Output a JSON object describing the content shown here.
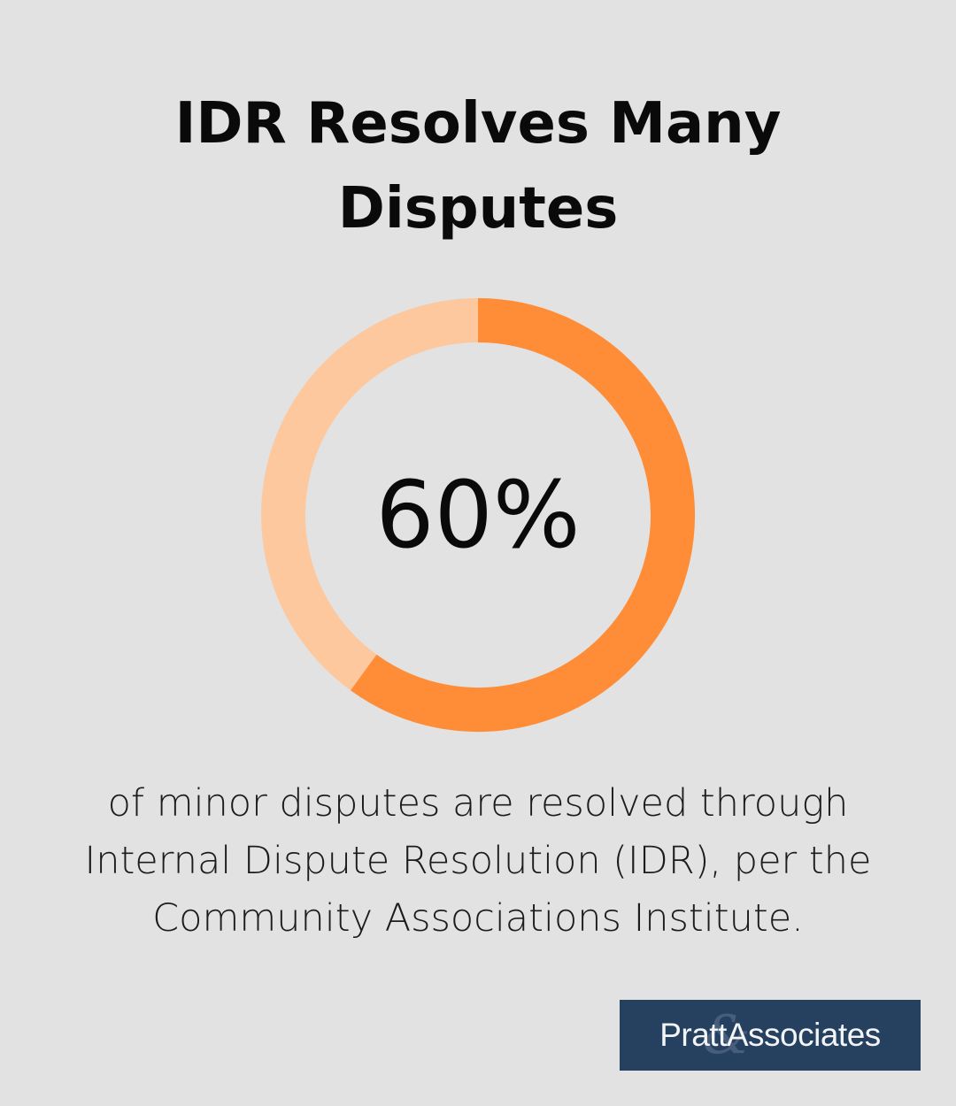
{
  "title": "IDR Resolves Many Disputes",
  "caption": "of minor disputes are resolved through Internal Dispute Resolution (IDR), per the Community Associations Institute.",
  "logo": {
    "text": "PrattAssociates",
    "mark": "&"
  },
  "colors": {
    "background": "#e1e2e1",
    "accent": "#ff8c36",
    "track": "#fec89e",
    "logo_bg": "#26405f"
  },
  "chart_data": {
    "type": "pie",
    "style": "donut",
    "center_label": "60%",
    "values": [
      60,
      40
    ],
    "colors": [
      "#ff8c36",
      "#fec89e"
    ]
  }
}
